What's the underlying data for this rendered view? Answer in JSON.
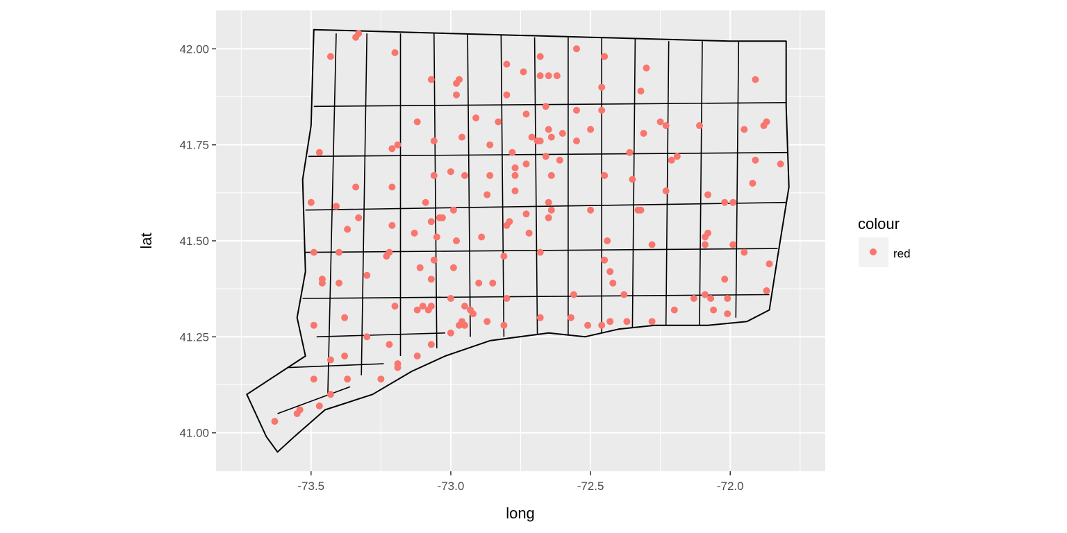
{
  "chart_data": {
    "type": "scatter",
    "title": "",
    "xlabel": "long",
    "ylabel": "lat",
    "xlim": [
      -73.84,
      -71.66
    ],
    "ylim": [
      40.9,
      42.1
    ],
    "x_ticks": [
      -73.5,
      -73.0,
      -72.5,
      -72.0
    ],
    "x_tick_labels": [
      "-73.5",
      "-73.0",
      "-72.5",
      "-72.0"
    ],
    "y_ticks": [
      41.0,
      41.25,
      41.5,
      41.75,
      42.0
    ],
    "y_tick_labels": [
      "41.00",
      "41.25",
      "41.50",
      "41.75",
      "42.00"
    ],
    "grid": true,
    "legend": {
      "title": "colour",
      "position": "right",
      "entries": [
        {
          "label": "red",
          "color": "#F8766D"
        }
      ]
    },
    "colors": {
      "panel": "#EBEBEB",
      "grid": "#FFFFFF",
      "point": "#F8766D",
      "outline": "#000000"
    },
    "state_outline": [
      [
        -73.49,
        42.05
      ],
      [
        -73.0,
        42.04
      ],
      [
        -72.5,
        42.03
      ],
      [
        -72.0,
        42.02
      ],
      [
        -71.8,
        42.02
      ],
      [
        -71.8,
        41.85
      ],
      [
        -71.79,
        41.64
      ],
      [
        -71.83,
        41.46
      ],
      [
        -71.86,
        41.32
      ],
      [
        -71.94,
        41.29
      ],
      [
        -72.08,
        41.28
      ],
      [
        -72.27,
        41.28
      ],
      [
        -72.4,
        41.27
      ],
      [
        -72.52,
        41.25
      ],
      [
        -72.65,
        41.26
      ],
      [
        -72.86,
        41.24
      ],
      [
        -73.02,
        41.2
      ],
      [
        -73.14,
        41.16
      ],
      [
        -73.28,
        41.1
      ],
      [
        -73.45,
        41.06
      ],
      [
        -73.56,
        40.99
      ],
      [
        -73.62,
        40.95
      ],
      [
        -73.66,
        40.99
      ],
      [
        -73.73,
        41.1
      ],
      [
        -73.52,
        41.2
      ],
      [
        -73.55,
        41.3
      ],
      [
        -73.52,
        41.42
      ],
      [
        -73.53,
        41.66
      ],
      [
        -73.5,
        41.8
      ],
      [
        -73.49,
        42.05
      ]
    ],
    "town_lines": [
      [
        [
          -73.49,
          41.85
        ],
        [
          -71.79,
          41.86
        ]
      ],
      [
        [
          -73.51,
          41.72
        ],
        [
          -71.79,
          41.73
        ]
      ],
      [
        [
          -73.52,
          41.58
        ],
        [
          -71.8,
          41.6
        ]
      ],
      [
        [
          -73.52,
          41.47
        ],
        [
          -71.83,
          41.48
        ]
      ],
      [
        [
          -73.53,
          41.35
        ],
        [
          -71.86,
          41.36
        ]
      ],
      [
        [
          -73.48,
          41.25
        ],
        [
          -73.02,
          41.26
        ]
      ],
      [
        [
          -73.41,
          42.04
        ],
        [
          -73.44,
          41.1
        ]
      ],
      [
        [
          -73.3,
          42.04
        ],
        [
          -73.32,
          41.15
        ]
      ],
      [
        [
          -73.18,
          42.04
        ],
        [
          -73.18,
          41.2
        ]
      ],
      [
        [
          -73.06,
          42.04
        ],
        [
          -73.05,
          41.22
        ]
      ],
      [
        [
          -72.94,
          42.04
        ],
        [
          -72.93,
          41.25
        ]
      ],
      [
        [
          -72.82,
          42.04
        ],
        [
          -72.81,
          41.25
        ]
      ],
      [
        [
          -72.7,
          42.03
        ],
        [
          -72.69,
          41.25
        ]
      ],
      [
        [
          -72.58,
          42.03
        ],
        [
          -72.58,
          41.25
        ]
      ],
      [
        [
          -72.46,
          42.03
        ],
        [
          -72.46,
          41.26
        ]
      ],
      [
        [
          -72.34,
          42.03
        ],
        [
          -72.35,
          41.27
        ]
      ],
      [
        [
          -72.22,
          42.02
        ],
        [
          -72.23,
          41.28
        ]
      ],
      [
        [
          -72.1,
          42.02
        ],
        [
          -72.11,
          41.28
        ]
      ],
      [
        [
          -71.97,
          42.02
        ],
        [
          -71.98,
          41.3
        ]
      ],
      [
        [
          -73.62,
          41.05
        ],
        [
          -73.36,
          41.12
        ]
      ],
      [
        [
          -73.58,
          41.17
        ],
        [
          -73.24,
          41.18
        ]
      ]
    ],
    "points": [
      [
        -73.43,
        41.98
      ],
      [
        -73.33,
        42.04
      ],
      [
        -73.34,
        42.03
      ],
      [
        -73.2,
        41.99
      ],
      [
        -73.07,
        41.92
      ],
      [
        -72.98,
        41.91
      ],
      [
        -72.97,
        41.92
      ],
      [
        -72.8,
        41.96
      ],
      [
        -72.68,
        41.98
      ],
      [
        -72.55,
        42.0
      ],
      [
        -72.45,
        41.98
      ],
      [
        -72.3,
        41.95
      ],
      [
        -72.74,
        41.94
      ],
      [
        -72.68,
        41.93
      ],
      [
        -72.65,
        41.93
      ],
      [
        -72.62,
        41.93
      ],
      [
        -72.46,
        41.9
      ],
      [
        -72.32,
        41.89
      ],
      [
        -71.91,
        41.92
      ],
      [
        -72.98,
        41.88
      ],
      [
        -72.8,
        41.88
      ],
      [
        -72.66,
        41.85
      ],
      [
        -72.55,
        41.84
      ],
      [
        -72.46,
        41.84
      ],
      [
        -73.12,
        41.81
      ],
      [
        -72.91,
        41.82
      ],
      [
        -72.83,
        41.81
      ],
      [
        -72.73,
        41.83
      ],
      [
        -72.25,
        41.81
      ],
      [
        -72.23,
        41.8
      ],
      [
        -72.11,
        41.8
      ],
      [
        -71.95,
        41.79
      ],
      [
        -71.87,
        41.81
      ],
      [
        -71.88,
        41.8
      ],
      [
        -73.06,
        41.76
      ],
      [
        -72.96,
        41.77
      ],
      [
        -72.86,
        41.75
      ],
      [
        -72.78,
        41.73
      ],
      [
        -72.71,
        41.77
      ],
      [
        -72.69,
        41.76
      ],
      [
        -72.68,
        41.76
      ],
      [
        -72.65,
        41.79
      ],
      [
        -72.64,
        41.77
      ],
      [
        -72.6,
        41.78
      ],
      [
        -72.55,
        41.76
      ],
      [
        -72.5,
        41.79
      ],
      [
        -72.31,
        41.78
      ],
      [
        -72.36,
        41.73
      ],
      [
        -73.21,
        41.74
      ],
      [
        -73.19,
        41.75
      ],
      [
        -73.47,
        41.73
      ],
      [
        -72.66,
        41.72
      ],
      [
        -72.21,
        41.71
      ],
      [
        -72.19,
        41.72
      ],
      [
        -71.91,
        41.71
      ],
      [
        -71.82,
        41.7
      ],
      [
        -73.06,
        41.67
      ],
      [
        -73.0,
        41.68
      ],
      [
        -72.95,
        41.67
      ],
      [
        -72.86,
        41.67
      ],
      [
        -72.77,
        41.69
      ],
      [
        -72.73,
        41.7
      ],
      [
        -72.77,
        41.67
      ],
      [
        -72.64,
        41.67
      ],
      [
        -72.61,
        41.71
      ],
      [
        -72.45,
        41.67
      ],
      [
        -72.35,
        41.66
      ],
      [
        -72.23,
        41.63
      ],
      [
        -72.08,
        41.62
      ],
      [
        -71.92,
        41.65
      ],
      [
        -73.34,
        41.64
      ],
      [
        -73.21,
        41.64
      ],
      [
        -73.09,
        41.6
      ],
      [
        -72.99,
        41.58
      ],
      [
        -72.87,
        41.62
      ],
      [
        -72.77,
        41.63
      ],
      [
        -72.65,
        41.6
      ],
      [
        -72.64,
        41.58
      ],
      [
        -72.5,
        41.58
      ],
      [
        -72.33,
        41.58
      ],
      [
        -72.32,
        41.58
      ],
      [
        -72.02,
        41.6
      ],
      [
        -71.99,
        41.6
      ],
      [
        -73.5,
        41.6
      ],
      [
        -73.41,
        41.59
      ],
      [
        -73.33,
        41.56
      ],
      [
        -73.21,
        41.54
      ],
      [
        -73.07,
        41.55
      ],
      [
        -73.04,
        41.56
      ],
      [
        -73.03,
        41.56
      ],
      [
        -72.8,
        41.54
      ],
      [
        -72.79,
        41.55
      ],
      [
        -72.73,
        41.57
      ],
      [
        -72.65,
        41.56
      ],
      [
        -73.37,
        41.53
      ],
      [
        -73.13,
        41.52
      ],
      [
        -73.05,
        41.51
      ],
      [
        -72.98,
        41.5
      ],
      [
        -72.89,
        41.51
      ],
      [
        -72.72,
        41.52
      ],
      [
        -72.44,
        41.5
      ],
      [
        -72.28,
        41.49
      ],
      [
        -72.09,
        41.51
      ],
      [
        -72.08,
        41.52
      ],
      [
        -72.09,
        41.49
      ],
      [
        -71.99,
        41.49
      ],
      [
        -73.49,
        41.47
      ],
      [
        -73.4,
        41.47
      ],
      [
        -73.22,
        41.47
      ],
      [
        -73.23,
        41.46
      ],
      [
        -72.81,
        41.46
      ],
      [
        -72.68,
        41.47
      ],
      [
        -72.45,
        41.45
      ],
      [
        -71.95,
        41.47
      ],
      [
        -71.86,
        41.44
      ],
      [
        -73.11,
        41.43
      ],
      [
        -73.06,
        41.45
      ],
      [
        -72.99,
        41.43
      ],
      [
        -73.46,
        41.4
      ],
      [
        -73.46,
        41.39
      ],
      [
        -73.4,
        41.39
      ],
      [
        -73.3,
        41.41
      ],
      [
        -73.07,
        41.4
      ],
      [
        -72.9,
        41.39
      ],
      [
        -72.85,
        41.39
      ],
      [
        -72.43,
        41.42
      ],
      [
        -72.42,
        41.39
      ],
      [
        -72.02,
        41.4
      ],
      [
        -73.2,
        41.33
      ],
      [
        -73.1,
        41.33
      ],
      [
        -73.07,
        41.33
      ],
      [
        -73.08,
        41.32
      ],
      [
        -73.12,
        41.32
      ],
      [
        -73.0,
        41.35
      ],
      [
        -72.95,
        41.33
      ],
      [
        -72.93,
        41.32
      ],
      [
        -72.92,
        41.31
      ],
      [
        -72.8,
        41.35
      ],
      [
        -72.56,
        41.36
      ],
      [
        -72.38,
        41.36
      ],
      [
        -72.13,
        41.35
      ],
      [
        -72.09,
        41.36
      ],
      [
        -72.07,
        41.35
      ],
      [
        -72.01,
        41.35
      ],
      [
        -71.87,
        41.37
      ],
      [
        -73.38,
        41.3
      ],
      [
        -73.49,
        41.28
      ],
      [
        -72.96,
        41.29
      ],
      [
        -72.97,
        41.28
      ],
      [
        -72.87,
        41.29
      ],
      [
        -72.81,
        41.28
      ],
      [
        -72.68,
        41.3
      ],
      [
        -72.57,
        41.3
      ],
      [
        -72.43,
        41.29
      ],
      [
        -72.46,
        41.28
      ],
      [
        -72.37,
        41.29
      ],
      [
        -72.28,
        41.29
      ],
      [
        -72.2,
        41.32
      ],
      [
        -72.06,
        41.32
      ],
      [
        -72.01,
        41.31
      ],
      [
        -73.0,
        41.26
      ],
      [
        -72.95,
        41.28
      ],
      [
        -73.3,
        41.25
      ],
      [
        -73.22,
        41.23
      ],
      [
        -73.07,
        41.23
      ],
      [
        -72.51,
        41.28
      ],
      [
        -73.43,
        41.19
      ],
      [
        -73.38,
        41.2
      ],
      [
        -73.19,
        41.18
      ],
      [
        -73.19,
        41.17
      ],
      [
        -73.12,
        41.2
      ],
      [
        -73.49,
        41.14
      ],
      [
        -73.37,
        41.14
      ],
      [
        -73.25,
        41.14
      ],
      [
        -73.43,
        41.1
      ],
      [
        -73.47,
        41.07
      ],
      [
        -73.54,
        41.06
      ],
      [
        -73.55,
        41.05
      ],
      [
        -73.63,
        41.03
      ]
    ]
  }
}
